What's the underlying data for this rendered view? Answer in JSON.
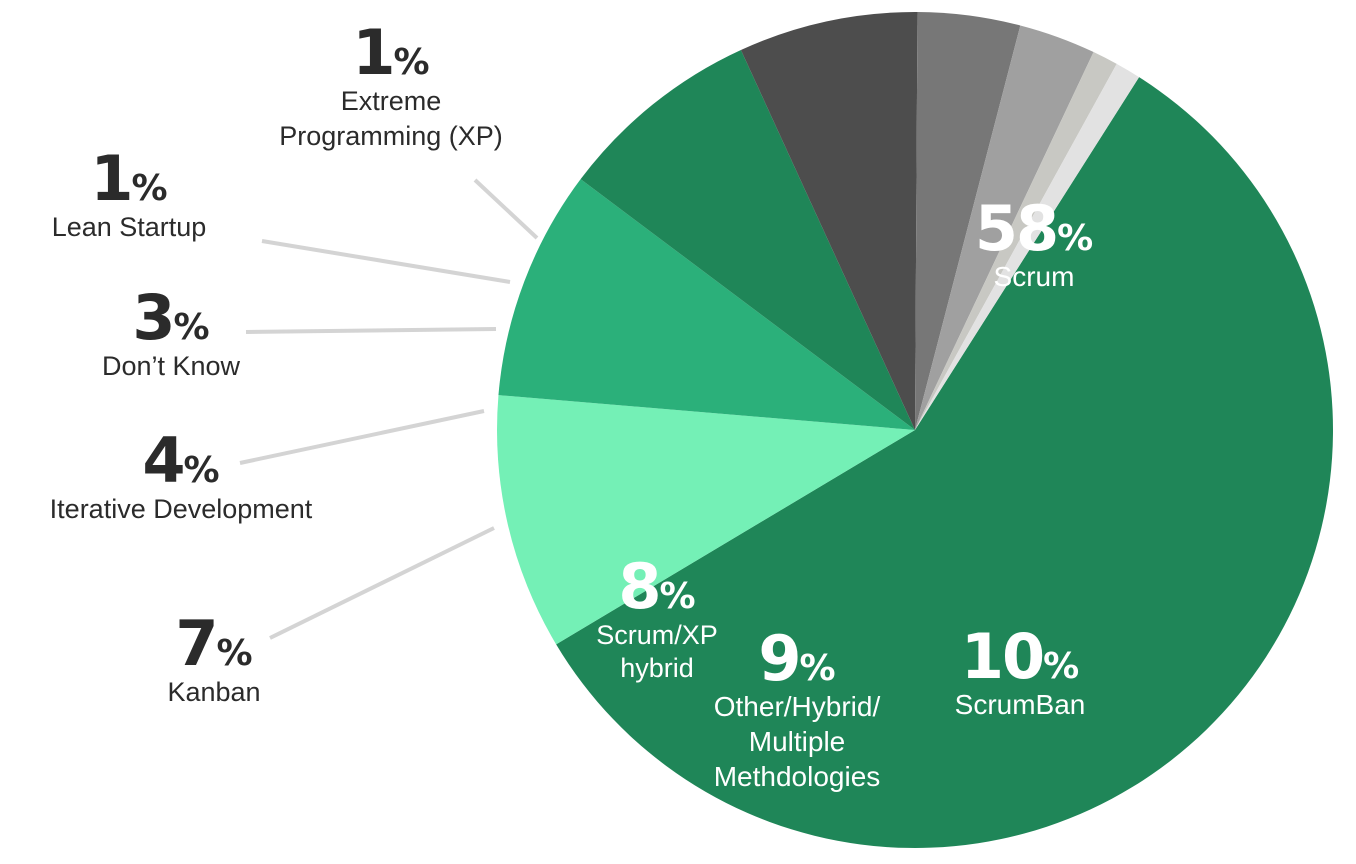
{
  "chart_data": {
    "type": "pie",
    "slices": [
      {
        "label": "Scrum",
        "value": 58,
        "color": "#1f8658",
        "text_color": "#ffffff",
        "label_lines": [
          "Scrum"
        ]
      },
      {
        "label": "ScrumBan",
        "value": 10,
        "color": "#74f0b6",
        "text_color": "#ffffff",
        "label_lines": [
          "ScrumBan"
        ]
      },
      {
        "label": "Other/Hybrid/ Multiple Methdologies",
        "value": 9,
        "color": "#2bb07a",
        "text_color": "#ffffff",
        "label_lines": [
          "Other/Hybrid/",
          "Multiple",
          "Methdologies"
        ]
      },
      {
        "label": "Scrum/XP hybrid",
        "value": 8,
        "color": "#1f8658",
        "text_color": "#ffffff",
        "label_lines": [
          "Scrum/XP",
          "hybrid"
        ]
      },
      {
        "label": "Kanban",
        "value": 7,
        "color": "#4d4d4d",
        "text_color": "#2b2b2b",
        "label_lines": [
          "Kanban"
        ]
      },
      {
        "label": "Iterative Development",
        "value": 4,
        "color": "#777777",
        "text_color": "#2b2b2b",
        "label_lines": [
          "Iterative Development"
        ]
      },
      {
        "label": "Don’t Know",
        "value": 3,
        "color": "#a0a0a0",
        "text_color": "#2b2b2b",
        "label_lines": [
          "Don’t Know"
        ]
      },
      {
        "label": "Lean Startup",
        "value": 1,
        "color": "#c8c8c3",
        "text_color": "#2b2b2b",
        "label_lines": [
          "Lean Startup"
        ]
      },
      {
        "label": "Extreme Programming (XP)",
        "value": 1,
        "color": "#e2e2e2",
        "text_color": "#2b2b2b",
        "label_lines": [
          "Extreme",
          "Programming (XP)"
        ]
      }
    ],
    "value_suffix": "%",
    "legend": "none"
  }
}
